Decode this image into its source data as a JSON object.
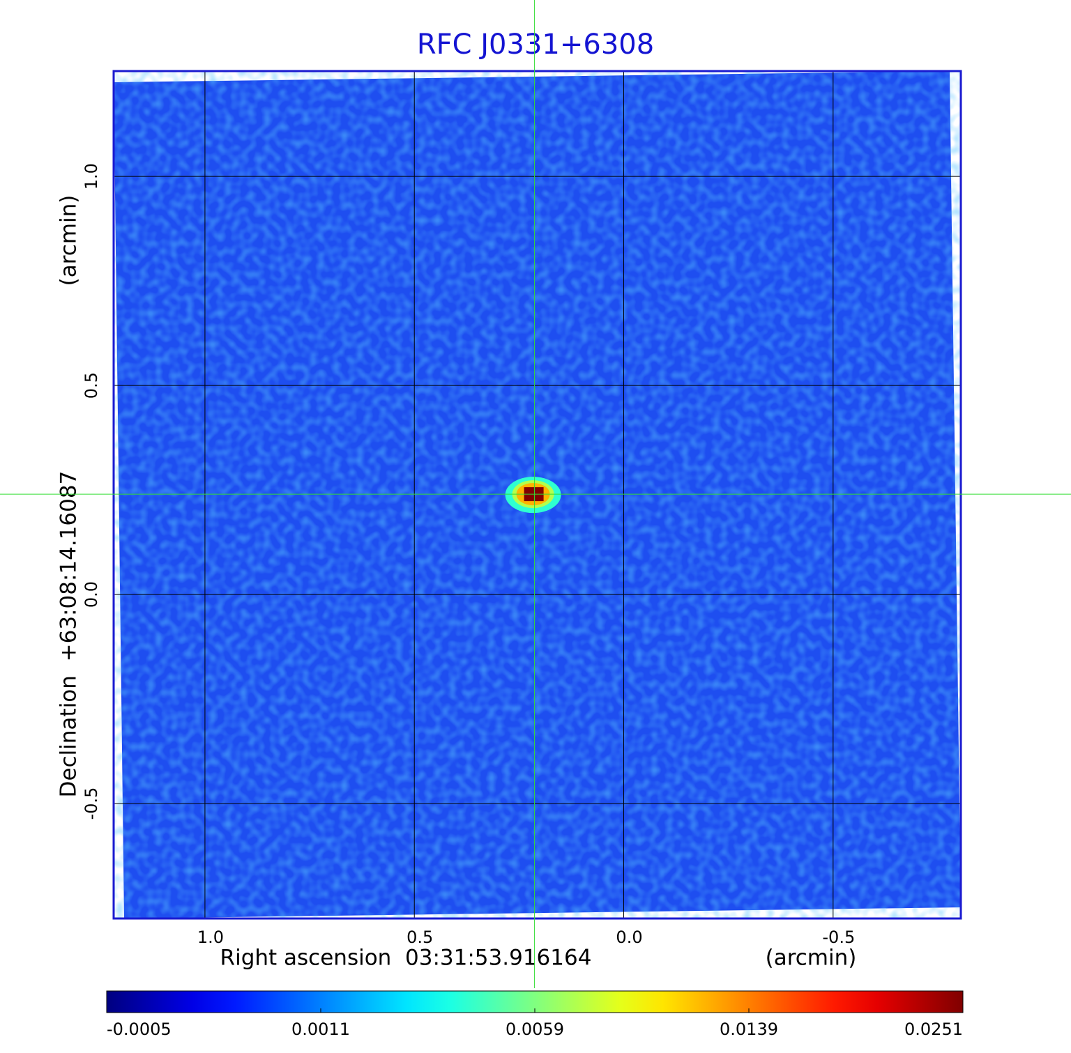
{
  "chart_data": {
    "type": "image",
    "title": "RFC J0331+6308",
    "x_label": "Right ascension  03:31:53.916164",
    "x_unit": "(arcmin)",
    "y_label": "Declination  +63:08:14.16087",
    "y_unit": "(arcmin)",
    "xlim": [
      1.218,
      -0.805
    ],
    "ylim": [
      -0.775,
      1.252
    ],
    "xticks": [
      {
        "value": 1,
        "label": "1.0"
      },
      0.5,
      {
        "value": 0,
        "label": "0.0"
      },
      -0.5
    ],
    "yticks": [
      {
        "value": 1,
        "label": "1.0"
      },
      0.5,
      {
        "value": 0,
        "label": "0.0"
      },
      -0.5
    ],
    "grid": true,
    "colormap": "jet",
    "color_scale": "sqrt",
    "clim": [
      -0.0005,
      0.0251
    ],
    "cticks": [
      -0.0005,
      0.0011,
      0.0059,
      0.0139,
      0.0251
    ],
    "source": {
      "x": 0.213,
      "y": 0.24,
      "peak": 0.0251
    }
  }
}
